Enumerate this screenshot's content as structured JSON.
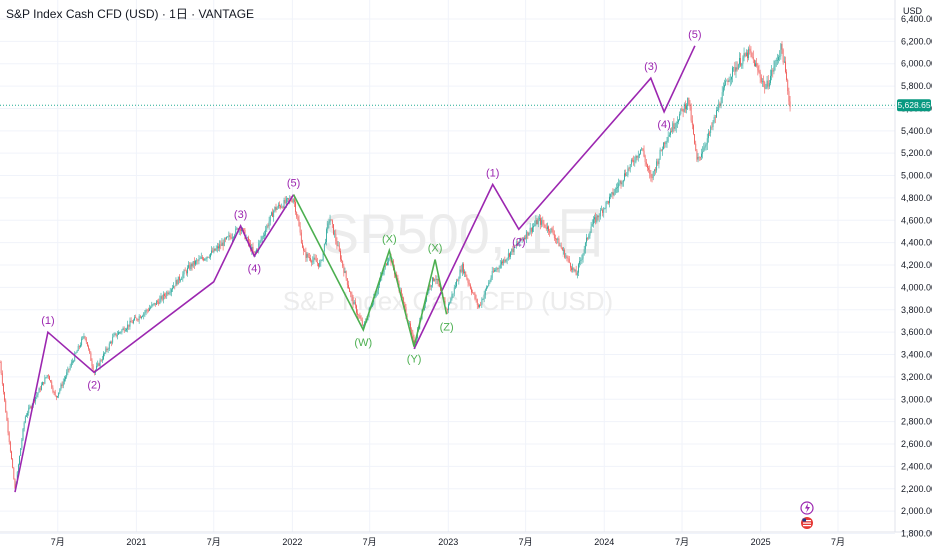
{
  "header": {
    "title": "S&P Index Cash CFD (USD) · 1日 · VANTAGE"
  },
  "watermark": {
    "symbol": "SP500, 1日",
    "name": "S&P Index Cash CFD (USD)"
  },
  "colors": {
    "up": "#26a69a",
    "down": "#ef5350",
    "purple_wave": "#9c27b0",
    "green_wave": "#4caf50",
    "price_label": "#089981",
    "grid": "#f0f3fa"
  },
  "price_badge": "5,628.65",
  "chart_data": {
    "type": "line",
    "currency_label": "USD",
    "y_ticks": [
      "6,400.00",
      "6,200.00",
      "6,000.00",
      "5,800.00",
      "5,600.00",
      "5,400.00",
      "5,200.00",
      "5,000.00",
      "4,800.00",
      "4,600.00",
      "4,400.00",
      "4,200.00",
      "4,000.00",
      "3,800.00",
      "3,600.00",
      "3,400.00",
      "3,200.00",
      "3,000.00",
      "2,800.00",
      "2,600.00",
      "2,400.00",
      "2,200.00",
      "2,000.00",
      "1,800.00"
    ],
    "ylim": [
      1760,
      6480
    ],
    "x_ticks": [
      "7月",
      "2021",
      "7月",
      "2022",
      "7月",
      "2023",
      "7月",
      "2024",
      "7月",
      "2025",
      "7月"
    ],
    "price_series": {
      "name": "",
      "x": [
        "2020-02-15",
        "2020-03-23",
        "2020-04-15",
        "2020-06-08",
        "2020-06-26",
        "2020-09-02",
        "2020-09-24",
        "2020-11-09",
        "2021-01-04",
        "2021-03-01",
        "2021-05-10",
        "2021-07-01",
        "2021-09-02",
        "2021-10-04",
        "2021-11-20",
        "2022-01-04",
        "2022-01-28",
        "2022-03-08",
        "2022-03-29",
        "2022-05-20",
        "2022-06-16",
        "2022-08-16",
        "2022-09-15",
        "2022-10-13",
        "2022-11-15",
        "2022-12-01",
        "2022-12-28",
        "2023-02-02",
        "2023-03-13",
        "2023-04-15",
        "2023-06-15",
        "2023-07-31",
        "2023-09-01",
        "2023-10-27",
        "2023-12-01",
        "2024-01-15",
        "2024-03-28",
        "2024-04-19",
        "2024-05-20",
        "2024-07-16",
        "2024-08-05",
        "2024-09-06",
        "2024-10-15",
        "2024-11-11",
        "2024-12-06",
        "2025-01-13",
        "2025-02-19",
        "2025-03-13"
      ],
      "y": [
        3390,
        2190,
        2840,
        3230,
        3010,
        3580,
        3240,
        3560,
        3730,
        3900,
        4200,
        4320,
        4540,
        4290,
        4700,
        4800,
        4300,
        4200,
        4630,
        3900,
        3640,
        4300,
        3900,
        3490,
        4000,
        4100,
        3790,
        4190,
        3820,
        4130,
        4400,
        4600,
        4500,
        4110,
        4550,
        4800,
        5250,
        4960,
        5300,
        5680,
        5120,
        5400,
        5860,
        6010,
        6100,
        5780,
        6150,
        5560
      ]
    },
    "purple_waves": [
      {
        "x": [
          "2020-03-23",
          "2020-06-08",
          "2020-09-24",
          "2021-07-01",
          "2021-09-02",
          "2021-10-04",
          "2022-01-04"
        ],
        "y": [
          2170,
          3600,
          3240,
          4050,
          4550,
          4280,
          4830
        ]
      },
      {
        "x": [
          "2022-10-13",
          "2023-04-15",
          "2023-06-15",
          "2024-04-19",
          "2024-05-20",
          "2024-07-31"
        ],
        "y": [
          3450,
          4920,
          4520,
          5870,
          5570,
          6160
        ]
      }
    ],
    "green_wave": {
      "x": [
        "2022-01-04",
        "2022-06-16",
        "2022-08-16",
        "2022-10-13",
        "2022-12-01",
        "2022-12-28"
      ],
      "y": [
        4830,
        3620,
        4330,
        3470,
        4250,
        3760
      ]
    },
    "wave_labels": [
      {
        "text": "(1)",
        "x": "2020-06-08",
        "y": 3600,
        "pos": "above",
        "color": "purple"
      },
      {
        "text": "(2)",
        "x": "2020-09-24",
        "y": 3240,
        "pos": "below",
        "color": "purple"
      },
      {
        "text": "(3)",
        "x": "2021-09-02",
        "y": 4550,
        "pos": "above",
        "color": "purple"
      },
      {
        "text": "(4)",
        "x": "2021-10-04",
        "y": 4280,
        "pos": "below",
        "color": "purple"
      },
      {
        "text": "(5)",
        "x": "2022-01-04",
        "y": 4830,
        "pos": "above",
        "color": "purple"
      },
      {
        "text": "(W)",
        "x": "2022-06-16",
        "y": 3620,
        "pos": "below",
        "color": "green"
      },
      {
        "text": "(X)",
        "x": "2022-08-16",
        "y": 4330,
        "pos": "above",
        "color": "green"
      },
      {
        "text": "(Y)",
        "x": "2022-10-13",
        "y": 3470,
        "pos": "below",
        "color": "green"
      },
      {
        "text": "(X)",
        "x": "2022-12-01",
        "y": 4250,
        "pos": "above",
        "color": "green"
      },
      {
        "text": "(Z)",
        "x": "2022-12-28",
        "y": 3760,
        "pos": "below",
        "color": "green"
      },
      {
        "text": "(1)",
        "x": "2023-04-15",
        "y": 4920,
        "pos": "above",
        "color": "purple"
      },
      {
        "text": "(2)",
        "x": "2023-06-15",
        "y": 4520,
        "pos": "below",
        "color": "purple"
      },
      {
        "text": "(3)",
        "x": "2024-04-19",
        "y": 5870,
        "pos": "above",
        "color": "purple"
      },
      {
        "text": "(4)",
        "x": "2024-05-20",
        "y": 5570,
        "pos": "below",
        "color": "purple"
      },
      {
        "text": "(5)",
        "x": "2024-07-31",
        "y": 6160,
        "pos": "above",
        "color": "purple"
      }
    ],
    "last_price": 5628.65
  }
}
